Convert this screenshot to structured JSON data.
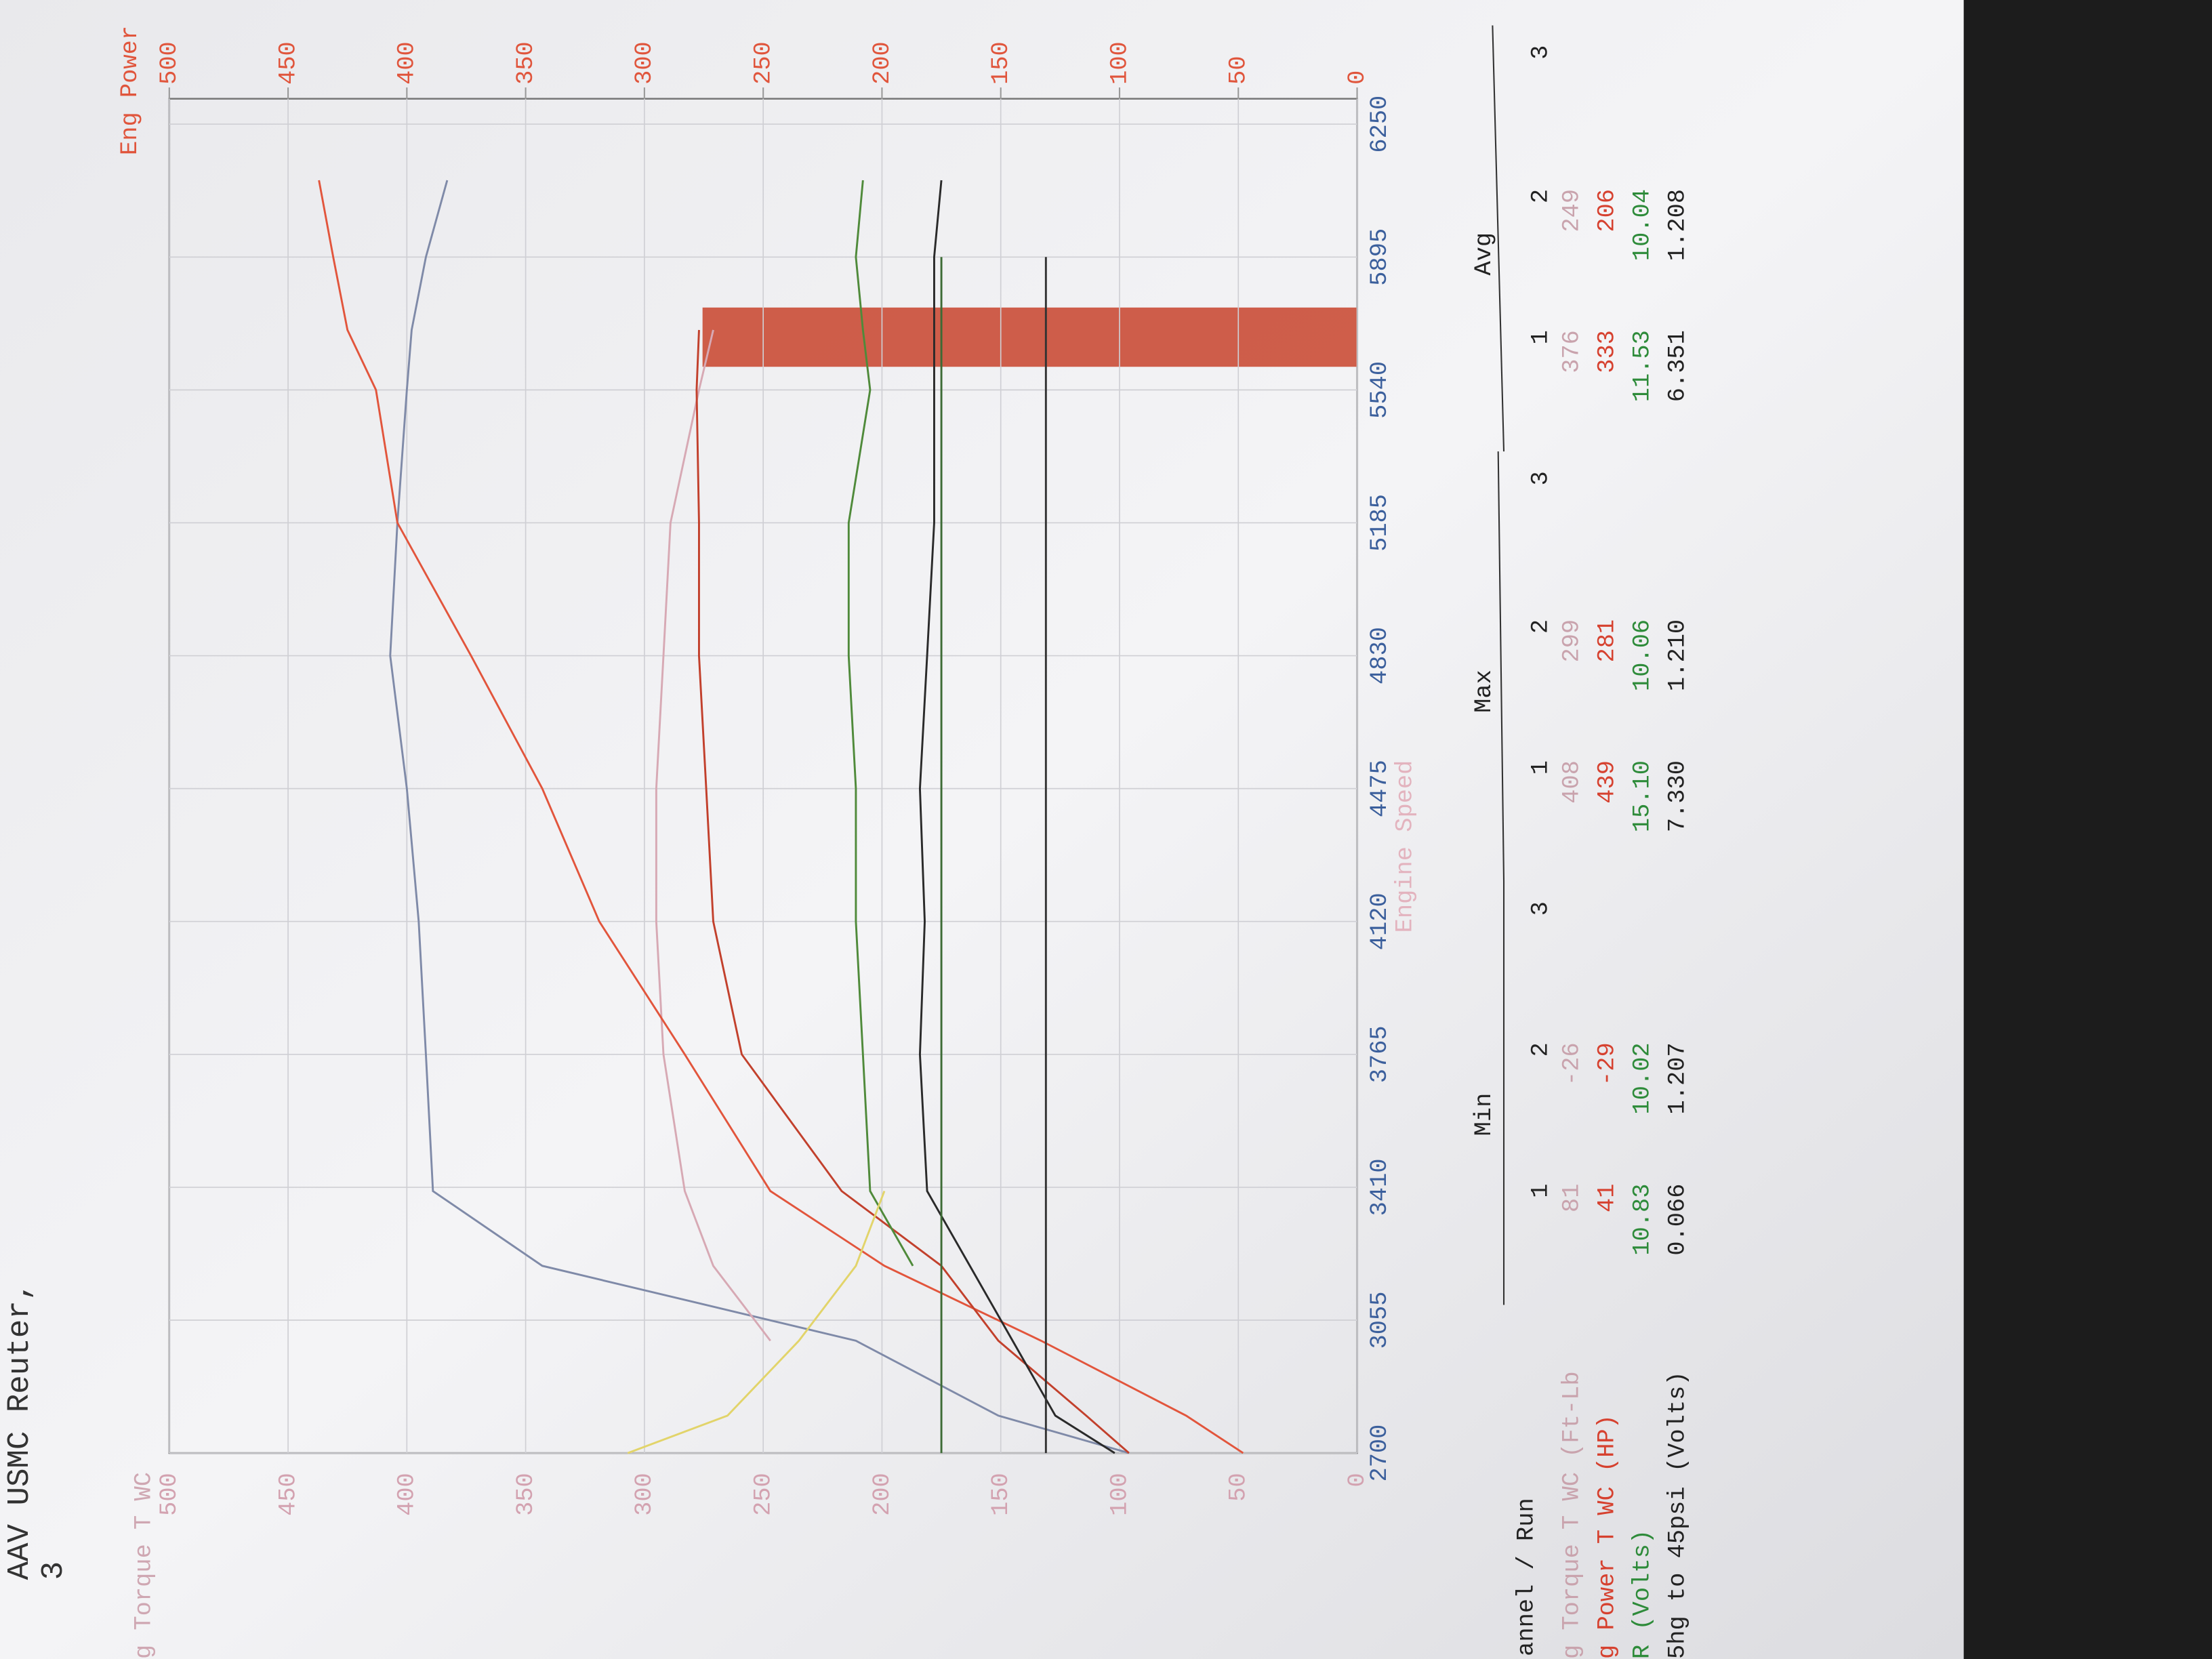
{
  "chart_data": {
    "type": "line",
    "header": "AAV USMC Reuter,",
    "page_no": "3",
    "y_label": "g Torque T WC",
    "y2_label": "Eng Power",
    "x_label": "Engine Speed",
    "x": [
      2700,
      2800,
      3000,
      3200,
      3400,
      3765,
      4120,
      4475,
      4830,
      5185,
      5540,
      5700,
      5895,
      6100
    ],
    "xlim": [
      2700,
      6250
    ],
    "xticks": [
      2700,
      3055,
      3410,
      3765,
      4120,
      4475,
      4830,
      5185,
      5540,
      5895,
      6250
    ],
    "ylim": [
      0,
      500
    ],
    "yticks": [
      0,
      50,
      100,
      150,
      200,
      250,
      300,
      350,
      400,
      450,
      500
    ],
    "y2lim": [
      0,
      500
    ],
    "y2ticks": [
      0,
      50,
      100,
      150,
      200,
      250,
      300,
      350,
      400,
      450,
      500
    ],
    "grid": true,
    "series": [
      {
        "color": "#7f8aa8",
        "values": [
          96,
          151,
          211,
          343,
          389,
          392,
          395,
          400,
          407,
          404,
          400,
          398,
          392,
          383
        ]
      },
      {
        "color": "#d7a9b4",
        "values": [
          null,
          null,
          247,
          271,
          283,
          292,
          295,
          295,
          292,
          289,
          277,
          271,
          null,
          null
        ]
      },
      {
        "color": "#e2553c",
        "values": [
          48,
          72,
          133,
          199,
          247,
          283,
          319,
          343,
          373,
          404,
          413,
          425,
          431,
          437
        ],
        "axis": "y2"
      },
      {
        "color": "#c2402c",
        "values": [
          96,
          114,
          151,
          175,
          217,
          259,
          271,
          274,
          277,
          277,
          278,
          277,
          null,
          null
        ],
        "axis": "y2"
      },
      {
        "color": "#4f8a3a",
        "values": [
          null,
          null,
          null,
          187,
          205,
          208,
          211,
          211,
          214,
          214,
          205,
          208,
          211,
          208
        ]
      },
      {
        "color": "#e2d46a",
        "values": [
          307,
          265,
          235,
          211,
          199,
          null,
          null,
          null,
          null,
          null,
          null,
          null,
          null,
          null
        ]
      },
      {
        "color": "#2a2a2a",
        "values": [
          102,
          127,
          145,
          163,
          181,
          184,
          182,
          184,
          181,
          178,
          178,
          178,
          178,
          175
        ]
      },
      {
        "color": "#3d6b35",
        "values": [
          175,
          175,
          175,
          175,
          175,
          175,
          175,
          175,
          175,
          175,
          175,
          175,
          175,
          null
        ]
      },
      {
        "color": "#333333",
        "values": [
          131,
          131,
          131,
          131,
          131,
          131,
          131,
          131,
          131,
          131,
          131,
          131,
          131,
          null
        ]
      }
    ]
  },
  "table": {
    "header": "annel / Run",
    "groups": [
      {
        "name": "Min",
        "runs": [
          "1",
          "2",
          "3"
        ]
      },
      {
        "name": "Max",
        "runs": [
          "1",
          "2",
          "3"
        ]
      },
      {
        "name": "Avg",
        "runs": [
          "1",
          "2",
          "3"
        ]
      }
    ],
    "rows": [
      {
        "label": "g Torque T WC (Ft-Lb",
        "color": "#c9a3ad",
        "cells": [
          [
            "81",
            "-26"
          ],
          [
            "408",
            "299"
          ],
          [
            "376",
            "249"
          ]
        ]
      },
      {
        "label": "g Power T WC (HP)",
        "color": "#d6412f",
        "cells": [
          [
            "41",
            "-29"
          ],
          [
            "439",
            "281"
          ],
          [
            "333",
            "206"
          ]
        ]
      },
      {
        "label": "R (Volts)",
        "color": "#2e8b3a",
        "cells": [
          [
            "10.83",
            "10.02"
          ],
          [
            "15.10",
            "10.06"
          ],
          [
            "11.53",
            "10.04"
          ]
        ]
      },
      {
        "label": "5hg to 45psi (Volts)",
        "color": "#222222",
        "cells": [
          [
            "0.066",
            "1.207"
          ],
          [
            "7.330",
            "1.210"
          ],
          [
            "6.351",
            "1.208"
          ]
        ]
      }
    ]
  }
}
